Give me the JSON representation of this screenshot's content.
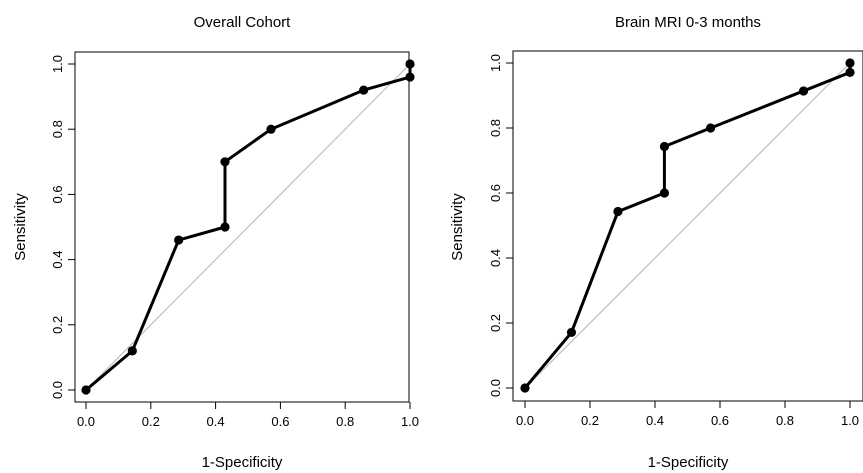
{
  "chart_data": [
    {
      "type": "line",
      "title": "Overall Cohort",
      "xlabel": "1-Specificity",
      "ylabel": "Sensitivity",
      "xlim": [
        0,
        1
      ],
      "ylim": [
        0,
        1
      ],
      "xticks": [
        "0.0",
        "0.2",
        "0.4",
        "0.6",
        "0.8",
        "1.0"
      ],
      "yticks": [
        "0.0",
        "0.2",
        "0.4",
        "0.6",
        "0.8",
        "1.0"
      ],
      "grid": false,
      "reference_line": {
        "from": [
          0,
          0
        ],
        "to": [
          1,
          1
        ],
        "color": "#bfbfbf"
      },
      "series": [
        {
          "color": "#000000",
          "x": [
            0.0,
            0.143,
            0.286,
            0.429,
            0.429,
            0.571,
            0.857,
            1.0,
            1.0
          ],
          "y": [
            0.0,
            0.12,
            0.46,
            0.5,
            0.7,
            0.8,
            0.92,
            0.96,
            1.0
          ]
        }
      ]
    },
    {
      "type": "line",
      "title": "Brain MRI 0-3 months",
      "xlabel": "1-Specificity",
      "ylabel": "Sensitivity",
      "xlim": [
        0,
        1
      ],
      "ylim": [
        0,
        1
      ],
      "xticks": [
        "0.0",
        "0.2",
        "0.4",
        "0.6",
        "0.8",
        "1.0"
      ],
      "yticks": [
        "0.0",
        "0.2",
        "0.4",
        "0.6",
        "0.8",
        "1.0"
      ],
      "grid": false,
      "reference_line": {
        "from": [
          0,
          0
        ],
        "to": [
          1,
          1
        ],
        "color": "#bfbfbf"
      },
      "series": [
        {
          "color": "#000000",
          "x": [
            0.0,
            0.143,
            0.286,
            0.429,
            0.429,
            0.571,
            0.857,
            1.0,
            1.0
          ],
          "y": [
            0.0,
            0.171,
            0.543,
            0.6,
            0.743,
            0.8,
            0.914,
            0.971,
            1.0
          ]
        }
      ]
    }
  ]
}
